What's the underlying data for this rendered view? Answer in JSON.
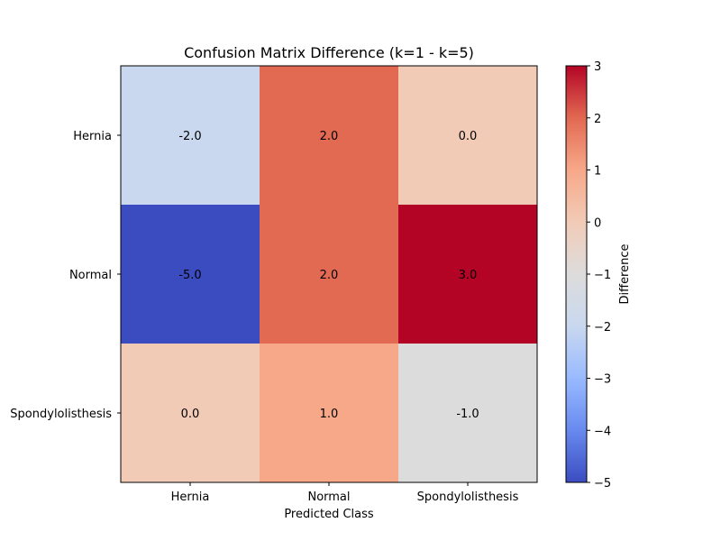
{
  "chart_data": {
    "type": "heatmap",
    "title": "Confusion Matrix Difference (k=1 - k=5)",
    "xlabel": "Predicted Class",
    "ylabel": "",
    "x_categories": [
      "Hernia",
      "Normal",
      "Spondylolisthesis"
    ],
    "y_categories": [
      "Hernia",
      "Normal",
      "Spondylolisthesis"
    ],
    "values": [
      [
        -2.0,
        2.0,
        0.0
      ],
      [
        -5.0,
        2.0,
        3.0
      ],
      [
        0.0,
        1.0,
        -1.0
      ]
    ],
    "cell_labels": [
      [
        "-2.0",
        "2.0",
        "0.0"
      ],
      [
        "-5.0",
        "2.0",
        "3.0"
      ],
      [
        "0.0",
        "1.0",
        "-1.0"
      ]
    ],
    "colormap": "coolwarm",
    "colorbar": {
      "label": "Difference",
      "range": [
        -5,
        3
      ],
      "ticks": [
        "3",
        "2",
        "1",
        "0",
        "−1",
        "−2",
        "−3",
        "−4",
        "−5"
      ]
    },
    "colors": {
      "cmap_stops": [
        "#3b4cc0",
        "#688aef",
        "#99baff",
        "#c9d8ef",
        "#dddcdc",
        "#f2cbb7",
        "#f7a889",
        "#e26952",
        "#b40426"
      ]
    },
    "grid": false,
    "legend": "colorbar-right"
  }
}
